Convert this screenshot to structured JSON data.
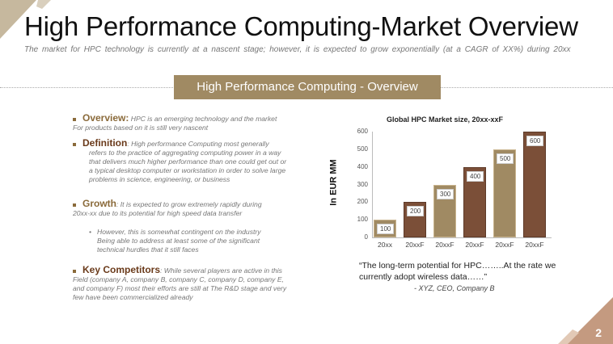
{
  "title": "High Performance Computing-Market Overview",
  "subtitle": "The market for HPC technology is currently at a nascent stage; however, it is expected to grow exponentially (at a CAGR of XX%) during 20xx",
  "banner": "High Performance Computing - Overview",
  "bullets": {
    "overview_head": "Overview:",
    "overview_text": " HPC is an emerging technology and the market",
    "overview_text2": "For products based on it is still very nascent",
    "definition_head": "Definition",
    "definition_text": ": High performance Computing most generally",
    "definition_text2": "refers to the practice of aggregating computing power in a way that delivers much higher performance than one could get out or a typical desktop computer or workstation in order to solve large problems in science, engineering, or business",
    "growth_head": "Growth",
    "growth_text": ": It is expected to grow extremely rapidly during",
    "growth_text2": "20xx-xx due to its potential for high speed data transfer",
    "growth_sub": "However, this is somewhat contingent on the industry Being able to address at least some of the significant technical hurdles that it still faces",
    "competitors_head": "Key Competitors",
    "competitors_text": ": While several players are active in this",
    "competitors_text2": "Field (company A, company B, company C, company D, company E, and company F) most their efforts are still at The R&D stage and very few have been commercialized already"
  },
  "quote": "“The long-term potential for HPC……..At the rate we currently adopt wireless data……”",
  "attribution": "- XYZ, CEO, Company B",
  "page_number": "2",
  "colors": {
    "tan": "#a08a63",
    "brown": "#7b4f38",
    "accent": "#c6b89e",
    "corner": "#c49a80"
  },
  "chart_data": {
    "type": "bar",
    "title": "Global HPC Market size, 20xx-xxF",
    "xlabel": "",
    "ylabel": "In EUR MM",
    "categories": [
      "20xx",
      "20xxF",
      "20xxF",
      "20xxF",
      "20xxF",
      "20xxF"
    ],
    "values": [
      100,
      200,
      300,
      400,
      500,
      600
    ],
    "ylim": [
      0,
      600
    ],
    "yticks": [
      0,
      100,
      200,
      300,
      400,
      500,
      600
    ],
    "grid": false,
    "bar_colors": [
      "#a08a63",
      "#7b4f38",
      "#a08a63",
      "#7b4f38",
      "#a08a63",
      "#7b4f38"
    ]
  }
}
